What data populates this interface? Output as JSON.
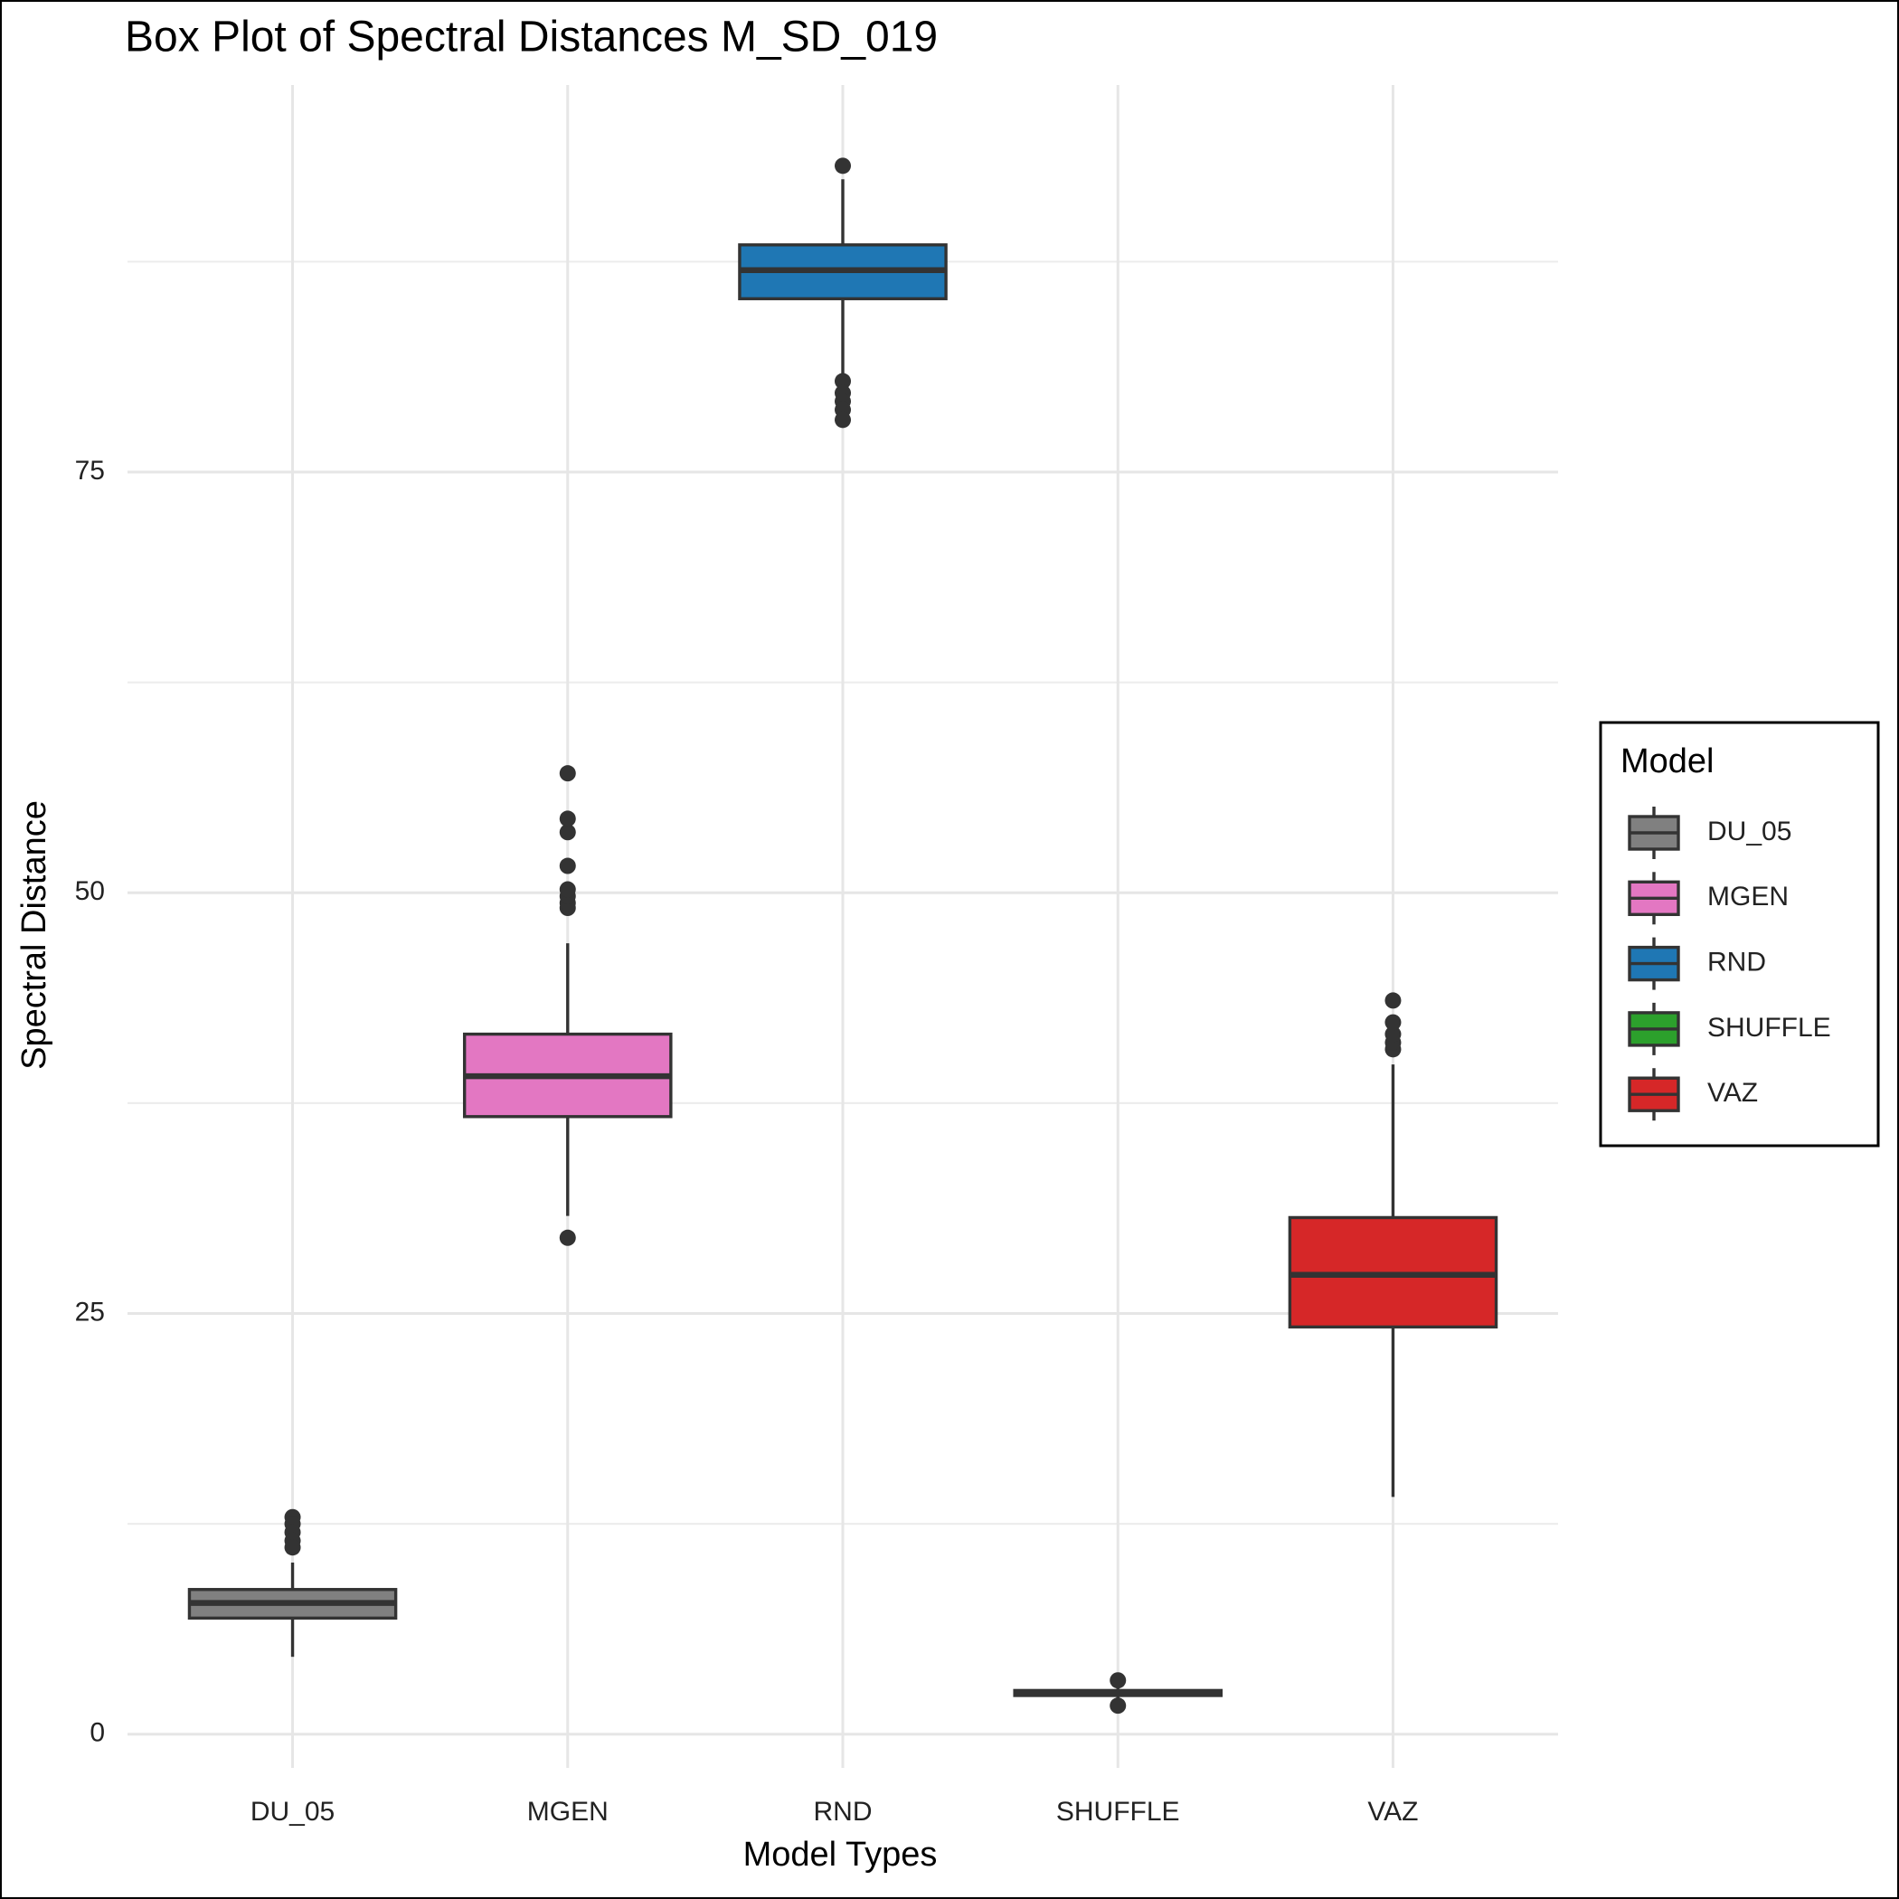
{
  "chart_data": {
    "type": "box",
    "title": "Box Plot of Spectral Distances M_SD_019",
    "x_label": "Model Types",
    "y_label": "Spectral Distance",
    "legend_title": "Model",
    "legend_position": "right",
    "grid": true,
    "categories": [
      "DU_05",
      "MGEN",
      "RND",
      "SHUFFLE",
      "VAZ"
    ],
    "ylim": [
      -2,
      98
    ],
    "yticks": [
      0,
      25,
      50,
      75
    ],
    "minor_yticks": [
      12.5,
      37.5,
      62.5,
      87.5
    ],
    "series": [
      {
        "name": "DU_05",
        "color": "#808080",
        "whisker_low": 4.6,
        "q1": 6.9,
        "median": 7.8,
        "q3": 8.6,
        "whisker_high": 10.2,
        "outliers": [
          12.9,
          12.5,
          12.0,
          11.5,
          11.1
        ]
      },
      {
        "name": "MGEN",
        "color": "#e377c2",
        "whisker_low": 30.8,
        "q1": 36.7,
        "median": 39.1,
        "q3": 41.6,
        "whisker_high": 47.0,
        "outliers": [
          29.5,
          49.1,
          49.4,
          49.8,
          50.2,
          51.6,
          53.6,
          54.4,
          57.1
        ]
      },
      {
        "name": "RND",
        "color": "#1f77b4",
        "whisker_low": 80.7,
        "q1": 85.3,
        "median": 87.0,
        "q3": 88.5,
        "whisker_high": 92.4,
        "outliers": [
          93.2,
          80.4,
          79.7,
          79.2,
          78.7,
          78.1
        ]
      },
      {
        "name": "SHUFFLE",
        "color": "#2ca02c",
        "whisker_low": 2.0,
        "q1": 2.3,
        "median": 2.5,
        "q3": 2.6,
        "whisker_high": 3.0,
        "outliers": [
          3.2,
          1.7
        ]
      },
      {
        "name": "VAZ",
        "color": "#d62728",
        "whisker_low": 14.1,
        "q1": 24.2,
        "median": 27.3,
        "q3": 30.7,
        "whisker_high": 39.8,
        "outliers": [
          40.7,
          41.1,
          41.6,
          42.3,
          43.6
        ]
      }
    ]
  }
}
